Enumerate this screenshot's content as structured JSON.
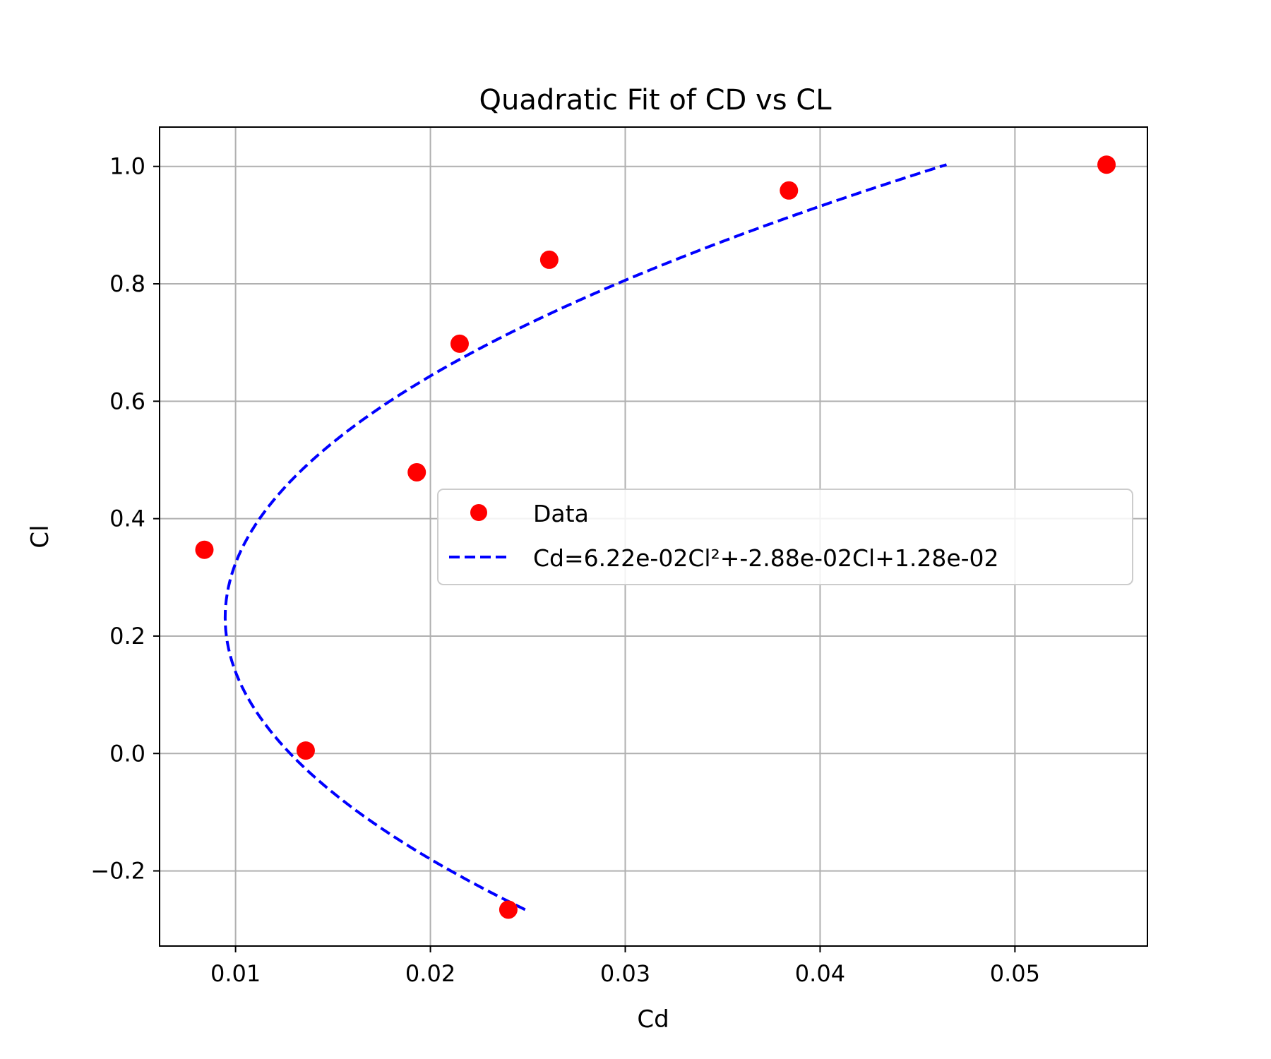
{
  "chart_data": {
    "type": "scatter",
    "title": "Quadratic Fit of CD vs CL",
    "xlabel": "Cd",
    "ylabel": "Cl",
    "xlim": [
      0.0061,
      0.0568
    ],
    "ylim": [
      -0.328,
      1.067
    ],
    "xticks": [
      0.01,
      0.02,
      0.03,
      0.04,
      0.05
    ],
    "xtick_labels": [
      "0.01",
      "0.02",
      "0.03",
      "0.04",
      "0.05"
    ],
    "yticks": [
      -0.2,
      0.0,
      0.2,
      0.4,
      0.6,
      0.8,
      1.0
    ],
    "ytick_labels": [
      "−0.2",
      "0.0",
      "0.2",
      "0.4",
      "0.6",
      "0.8",
      "1.0"
    ],
    "grid": true,
    "legend_position": "center-right",
    "series": [
      {
        "name": "Data",
        "kind": "scatter",
        "color": "#ff0000",
        "points": [
          {
            "cd": 0.0084,
            "cl": 0.347
          },
          {
            "cd": 0.0136,
            "cl": 0.005
          },
          {
            "cd": 0.0193,
            "cl": 0.479
          },
          {
            "cd": 0.0215,
            "cl": 0.698
          },
          {
            "cd": 0.024,
            "cl": -0.266
          },
          {
            "cd": 0.0261,
            "cl": 0.841
          },
          {
            "cd": 0.0384,
            "cl": 0.959
          },
          {
            "cd": 0.0547,
            "cl": 1.003
          }
        ]
      },
      {
        "name": "Cd=6.22e-02Cl²+-2.88e-02Cl+1.28e-02",
        "kind": "line",
        "style": "dashed",
        "color": "#0000ff",
        "coefficients": {
          "a": 0.0622,
          "b": -0.0288,
          "c": 0.0128
        },
        "cl_range": [
          -0.266,
          1.003
        ]
      }
    ]
  }
}
